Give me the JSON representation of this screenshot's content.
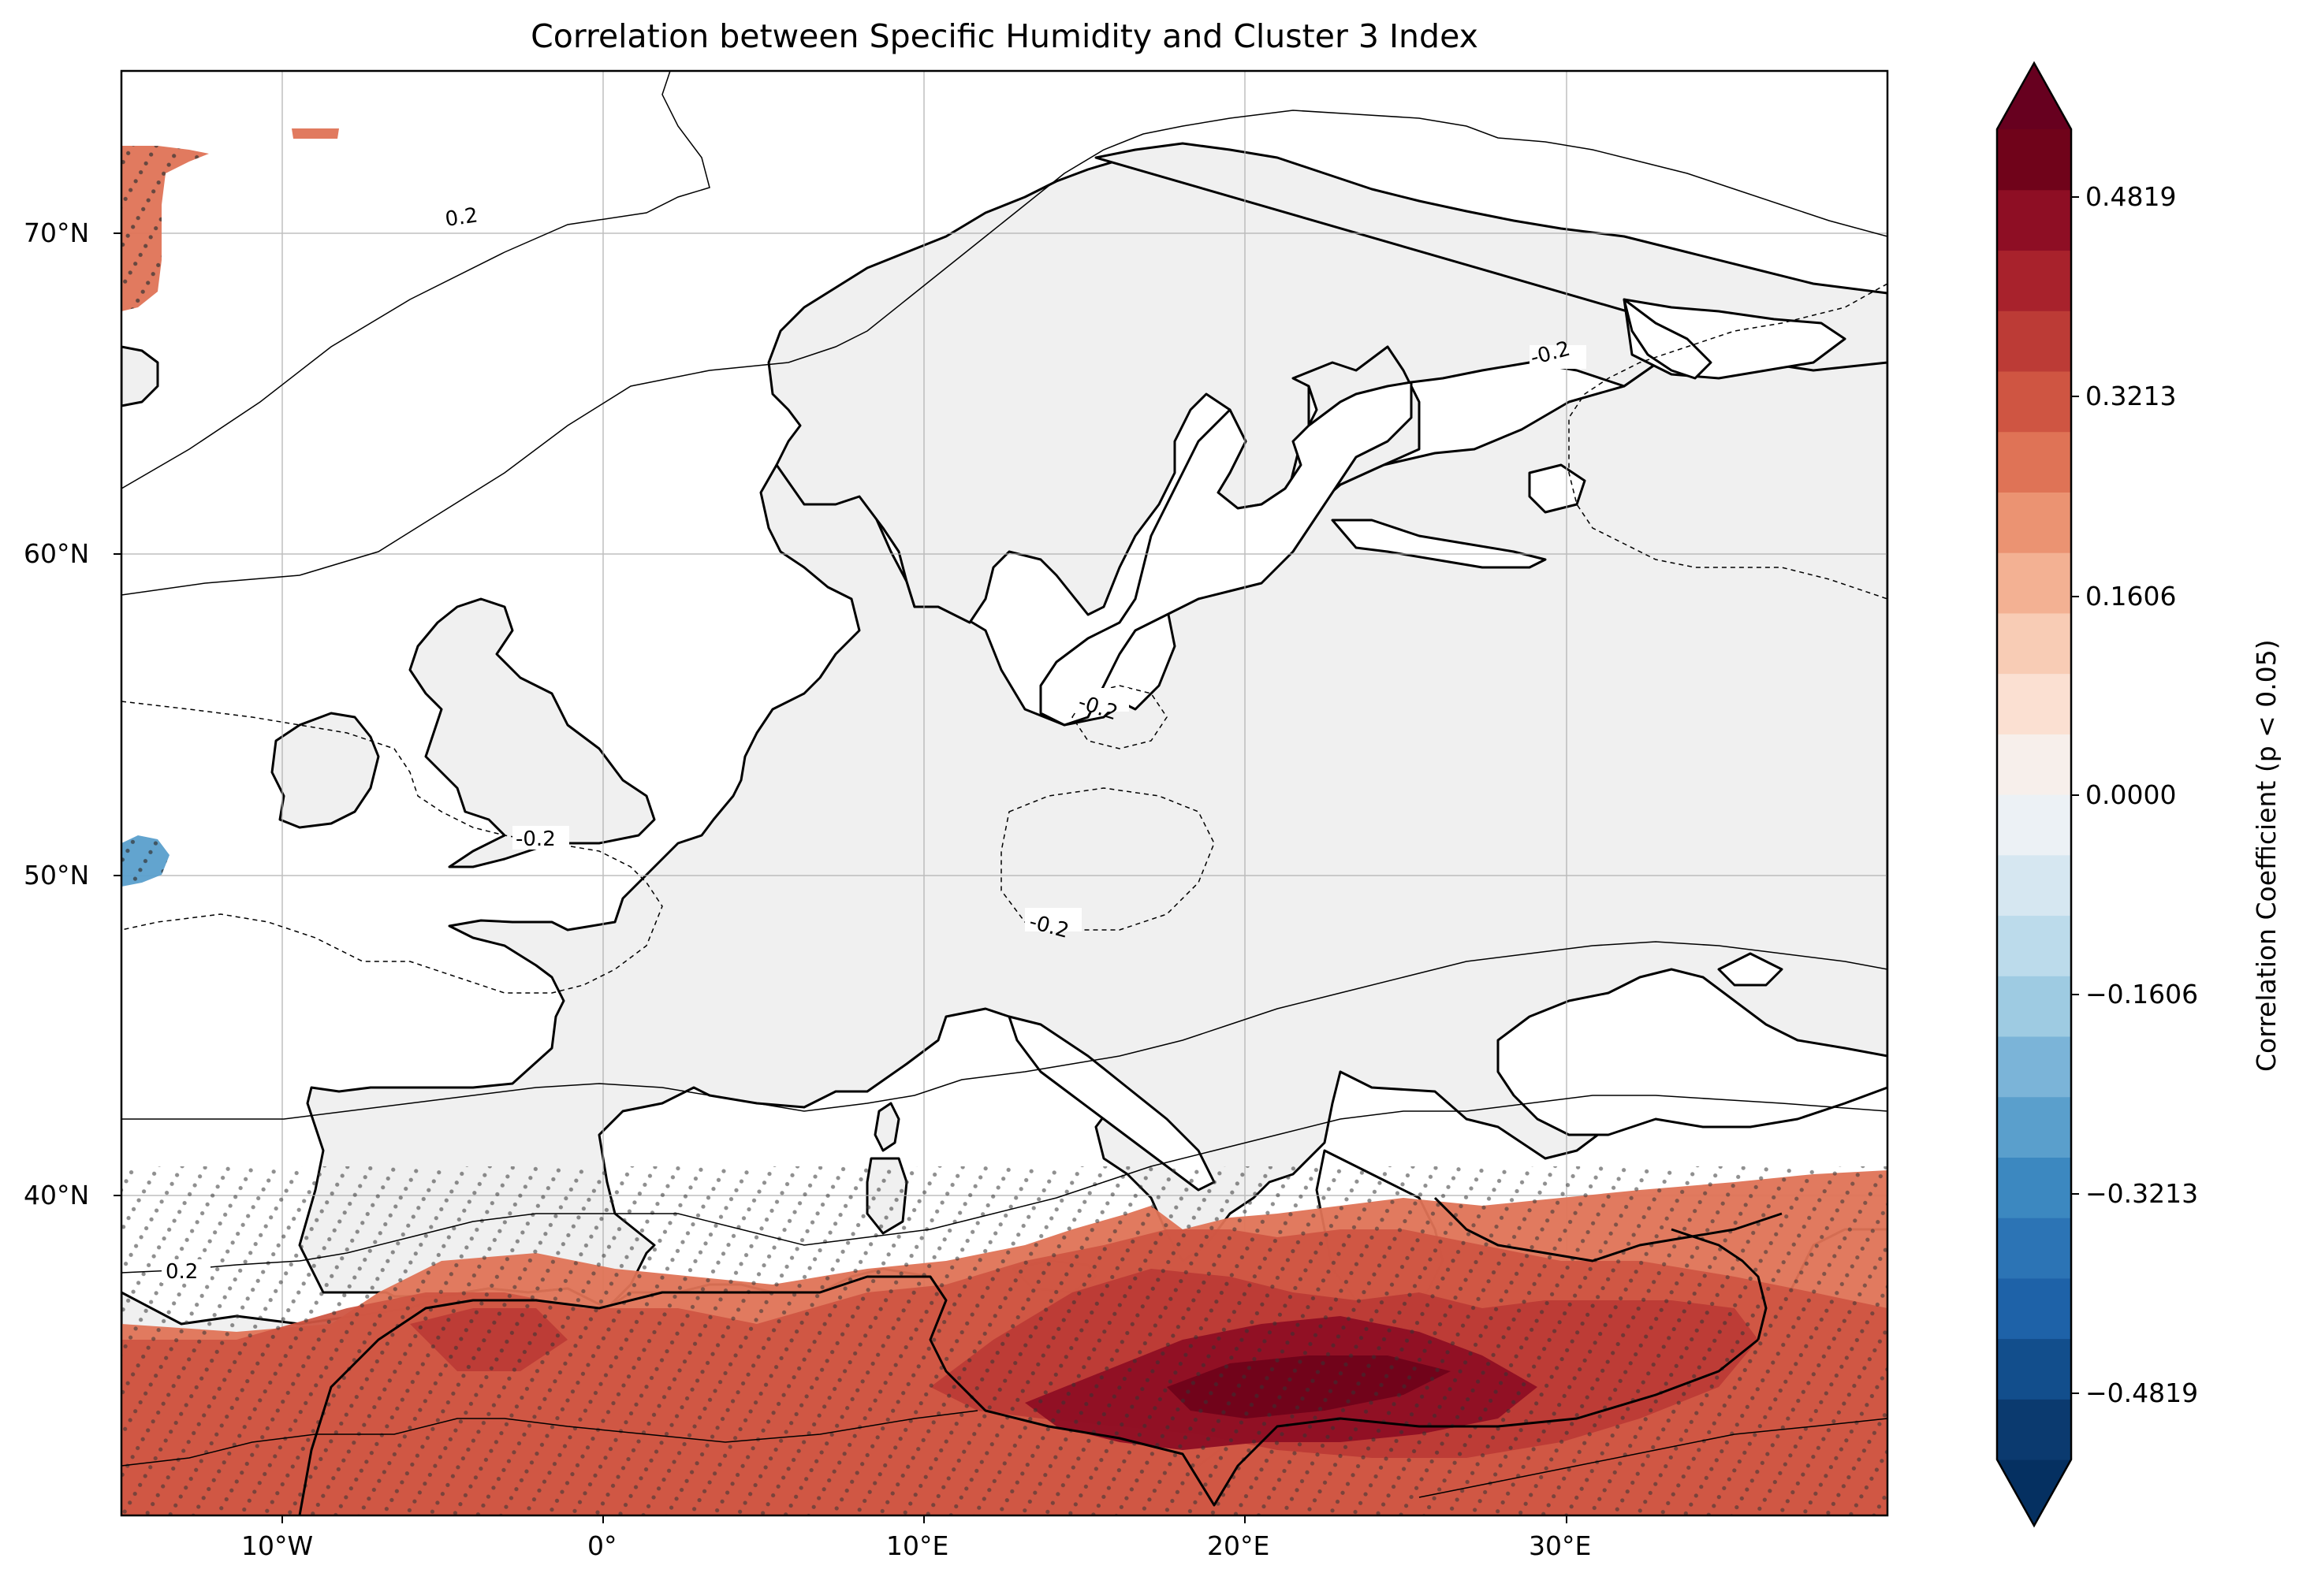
{
  "title": "Correlation between Specific Humidity and Cluster 3 Index",
  "colors": {
    "land": "#f0f0f0",
    "ocean": "#ffffff",
    "coast": "#000000",
    "grid": "#b0b0b0",
    "stipple": "#333333"
  },
  "axes": {
    "lon_ticks": [
      "10°W",
      "0°",
      "10°E",
      "20°E",
      "30°E"
    ],
    "lat_ticks": [
      "70°N",
      "60°N",
      "50°N",
      "40°N"
    ]
  },
  "contour_labels": {
    "pos_north": "0.2",
    "neg_east": "-0.2",
    "neg_baltic": "-0.2",
    "neg_channel": "-0.2",
    "neg_central": "-0.2",
    "pos_southwest": "0.2"
  },
  "colorbar": {
    "label": "Correlation Coefficient (p < 0.05)",
    "ticks": [
      "0.4819",
      "0.3213",
      "0.1606",
      "0.0000",
      "−0.1606",
      "−0.3213",
      "−0.4819"
    ],
    "colors": [
      "#0b3a6f",
      "#124e8c",
      "#1e62a8",
      "#2c74b5",
      "#3c88c0",
      "#5a9fcc",
      "#7bb4d8",
      "#9ecbe2",
      "#bcdbeb",
      "#d6e7f1",
      "#ecf1f5",
      "#f7efeb",
      "#fbe0d2",
      "#f8ccb5",
      "#f3b193",
      "#eb9372",
      "#df7356",
      "#cf5542",
      "#bc3b36",
      "#a8222c",
      "#8e0e24",
      "#70031a"
    ],
    "extend_low_color": "#053061",
    "extend_high_color": "#67001f"
  },
  "chart_data": {
    "type": "heatmap",
    "title": "Correlation between Specific Humidity and Cluster 3 Index",
    "projection": "PlateCarree",
    "lon_range": [
      -15,
      40
    ],
    "lat_range": [
      30,
      75
    ],
    "colorbar_range": [
      -0.5622,
      0.5622
    ],
    "colorbar_levels": 22,
    "colorbar_label": "Correlation Coefficient (p < 0.05)",
    "colorbar_ticks": [
      -0.4819,
      -0.3213,
      -0.1606,
      0.0,
      0.1606,
      0.3213,
      0.4819
    ],
    "contour_levels": [
      -0.2,
      0.2
    ],
    "regions": [
      {
        "area": "Mediterranean and North Africa (south of ~37°N)",
        "correlation_range": [
          0.2,
          0.56
        ],
        "significant": true
      },
      {
        "area": "Central Mediterranean / Libya coast",
        "correlation_range": [
          0.4,
          0.56
        ],
        "significant": true
      },
      {
        "area": "Greenland Sea margin (~70°N, 15°W)",
        "correlation_range": [
          0.24,
          0.32
        ],
        "significant": true
      },
      {
        "area": "Svalbard margin (~73°N, 6°W)",
        "correlation_range": [
          0.24,
          0.32
        ],
        "significant": true
      },
      {
        "area": "West of Ireland (~50°N, 14°W)",
        "correlation_range": [
          -0.32,
          -0.24
        ],
        "significant": true
      }
    ]
  }
}
